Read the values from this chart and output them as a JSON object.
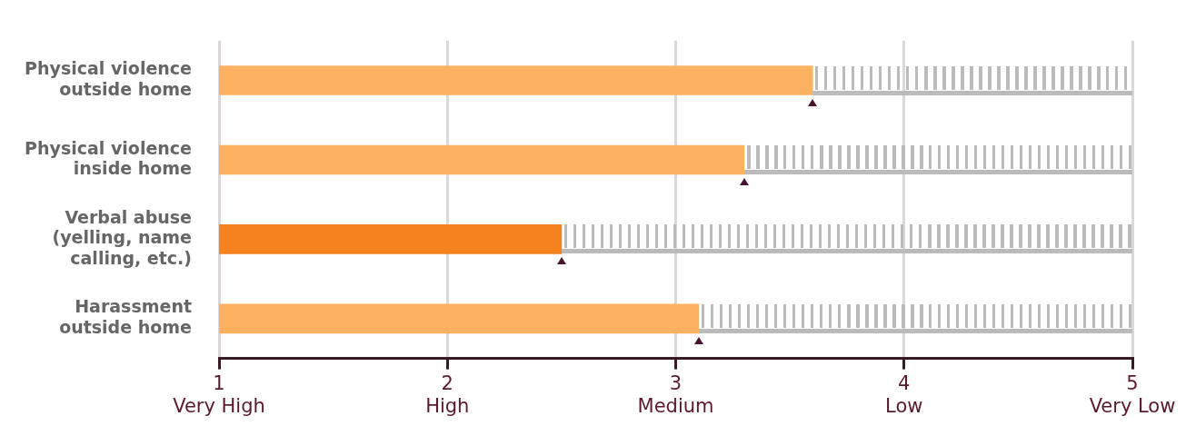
{
  "chart_data": {
    "type": "bar",
    "orientation": "horizontal",
    "categories": [
      "Physical violence outside home",
      "Physical violence inside home",
      "Verbal abuse (yelling, name calling, etc.)",
      "Harassment outside home"
    ],
    "base": [
      1,
      1,
      1,
      1
    ],
    "values": [
      2.6,
      2.3,
      1.5,
      2.1
    ],
    "colors": [
      "#fbb15f",
      "#fbb15f",
      "#f5821f",
      "#fbb15f"
    ],
    "xlim": [
      1,
      5
    ],
    "xticks": [
      {
        "value": 1,
        "label": "1\nVery High"
      },
      {
        "value": 2,
        "label": "2\nHigh"
      },
      {
        "value": 3,
        "label": "3\nMedium"
      },
      {
        "value": 4,
        "label": "4\nLow"
      },
      {
        "value": 5,
        "label": "5\nVery Low"
      }
    ],
    "grid": "x",
    "legend": false
  }
}
